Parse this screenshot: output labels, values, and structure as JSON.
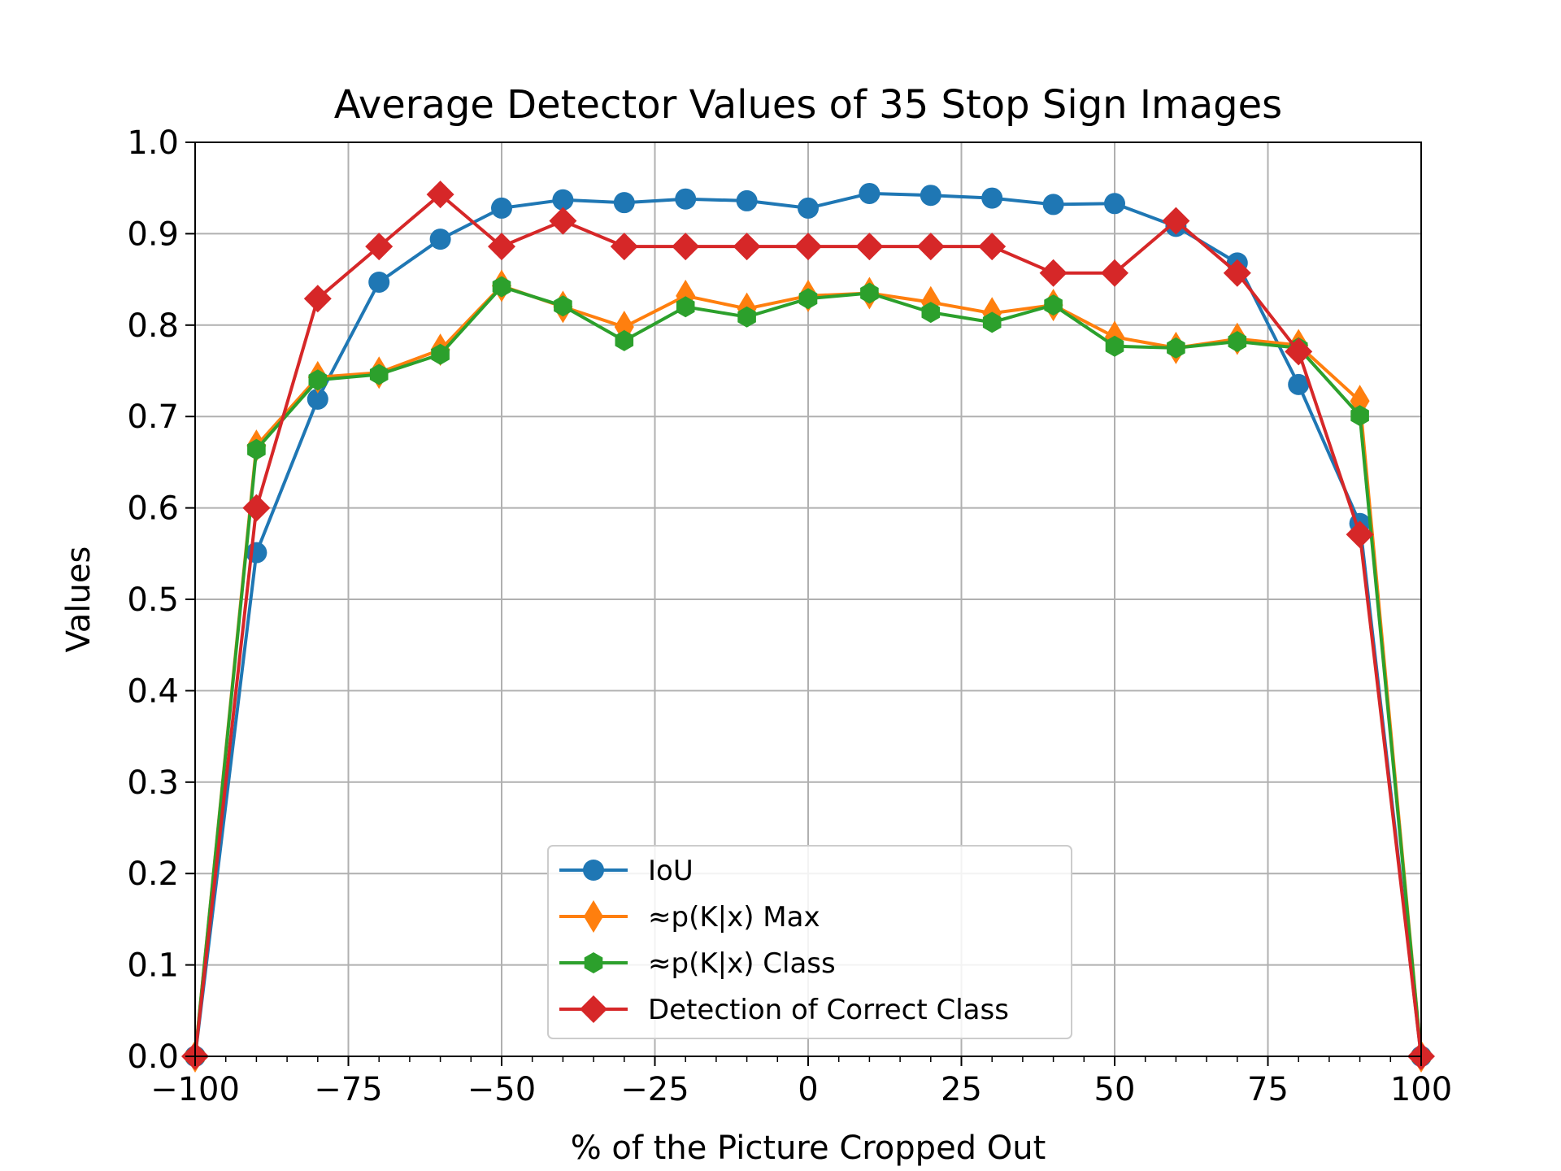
{
  "chart_data": {
    "type": "line",
    "title": "Average Detector Values of 35 Stop Sign Images",
    "xlabel": "% of the Picture Cropped Out",
    "ylabel": "Values",
    "xlim": [
      -100,
      100
    ],
    "ylim": [
      0.0,
      1.0
    ],
    "x_ticks": [
      -100,
      -75,
      -50,
      -25,
      0,
      25,
      50,
      75,
      100
    ],
    "x_tick_labels": [
      "−100",
      "−75",
      "−50",
      "−25",
      "0",
      "25",
      "50",
      "75",
      "100"
    ],
    "y_ticks": [
      0.0,
      0.1,
      0.2,
      0.3,
      0.4,
      0.5,
      0.6,
      0.7,
      0.8,
      0.9,
      1.0
    ],
    "y_tick_labels": [
      "0.0",
      "0.1",
      "0.2",
      "0.3",
      "0.4",
      "0.5",
      "0.6",
      "0.7",
      "0.8",
      "0.9",
      "1.0"
    ],
    "grid": true,
    "legend_position": "lower-center",
    "x": [
      -100,
      -90,
      -80,
      -70,
      -60,
      -50,
      -40,
      -30,
      -20,
      -10,
      0,
      10,
      20,
      30,
      40,
      50,
      60,
      70,
      80,
      90,
      100
    ],
    "series": [
      {
        "name": "IoU",
        "color": "#1f77b4",
        "marker": "circle",
        "values": [
          0.0,
          0.551,
          0.719,
          0.847,
          0.894,
          0.928,
          0.937,
          0.934,
          0.938,
          0.936,
          0.928,
          0.944,
          0.942,
          0.939,
          0.932,
          0.933,
          0.908,
          0.868,
          0.735,
          0.583,
          0.0
        ]
      },
      {
        "name": "≈p(K|x) Max",
        "color": "#ff7f0e",
        "marker": "thin-diamond",
        "values": [
          0.0,
          0.668,
          0.743,
          0.748,
          0.773,
          0.843,
          0.82,
          0.798,
          0.832,
          0.818,
          0.832,
          0.835,
          0.825,
          0.813,
          0.822,
          0.787,
          0.775,
          0.785,
          0.778,
          0.717,
          0.0
        ]
      },
      {
        "name": "≈p(K|x) Class",
        "color": "#2ca02c",
        "marker": "hexagon",
        "values": [
          0.0,
          0.664,
          0.74,
          0.746,
          0.768,
          0.842,
          0.821,
          0.783,
          0.82,
          0.809,
          0.829,
          0.835,
          0.814,
          0.803,
          0.822,
          0.777,
          0.775,
          0.782,
          0.775,
          0.701,
          0.0
        ]
      },
      {
        "name": "Detection of Correct Class",
        "color": "#d62728",
        "marker": "diamond",
        "values": [
          0.0,
          0.6,
          0.829,
          0.886,
          0.943,
          0.886,
          0.914,
          0.886,
          0.886,
          0.886,
          0.886,
          0.886,
          0.886,
          0.886,
          0.857,
          0.857,
          0.914,
          0.857,
          0.771,
          0.571,
          0.0
        ]
      }
    ]
  }
}
